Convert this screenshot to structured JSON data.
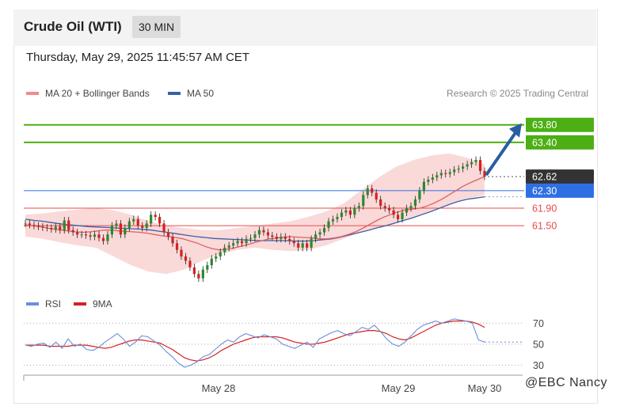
{
  "header": {
    "title": "Crude Oil (WTI)",
    "timeframe": "30 MIN",
    "timestamp": "Thursday, May 29, 2025 11:45:57 AM CET"
  },
  "legend": {
    "ma20": "MA 20 + Bollinger Bands",
    "ma50": "MA 50",
    "research": "Research © 2025 Trading Central"
  },
  "rsi_legend": {
    "rsi": "RSI",
    "ma9": "9MA"
  },
  "watermark": "@EBC Nancy",
  "colors": {
    "resistance": "#4caf14",
    "pivot": "#2f6fe4",
    "support": "#e84a4a",
    "price_label": "#333333",
    "arrow": "#2a5ea0",
    "ma20": "#e06060",
    "ma50": "#3a5fa8",
    "bollinger": "#f9d2d2",
    "candle_up": "#2a8a2a",
    "candle_down": "#d62020",
    "rsi": "#6a8fd8",
    "rsi_ma": "#d62020"
  },
  "chart_data": [
    {
      "type": "line",
      "title": "Crude Oil (WTI)",
      "x_ticks": [
        "May 28",
        "May 29",
        "May 30"
      ],
      "levels": [
        {
          "value": 63.8,
          "label": "63.80",
          "kind": "resistance"
        },
        {
          "value": 63.4,
          "label": "63.40",
          "kind": "resistance"
        },
        {
          "value": 62.62,
          "label": "62.62",
          "kind": "last"
        },
        {
          "value": 62.3,
          "label": "62.30",
          "kind": "pivot"
        },
        {
          "value": 61.9,
          "label": "61.90",
          "kind": "support"
        },
        {
          "value": 61.5,
          "label": "61.50",
          "kind": "support"
        }
      ],
      "ylim": [
        60.15,
        64.3
      ],
      "price_close": [
        61.55,
        61.52,
        61.5,
        61.48,
        61.46,
        61.45,
        61.42,
        61.48,
        61.4,
        61.62,
        61.4,
        61.35,
        61.3,
        61.3,
        61.28,
        61.25,
        61.3,
        61.22,
        61.15,
        61.3,
        61.5,
        61.55,
        61.3,
        61.45,
        61.6,
        61.65,
        61.5,
        61.45,
        61.55,
        61.75,
        61.7,
        61.55,
        61.35,
        61.25,
        61.1,
        60.95,
        60.8,
        60.7,
        60.55,
        60.4,
        60.3,
        60.5,
        60.6,
        60.75,
        60.8,
        60.9,
        61.0,
        61.05,
        61.1,
        61.15,
        61.1,
        61.2,
        61.22,
        61.3,
        61.4,
        61.35,
        61.28,
        61.25,
        61.2,
        61.25,
        61.2,
        61.15,
        61.1,
        61.0,
        61.1,
        61.0,
        61.2,
        61.3,
        61.35,
        61.45,
        61.6,
        61.65,
        61.7,
        61.8,
        61.85,
        61.75,
        61.9,
        61.95,
        62.2,
        62.35,
        62.25,
        62.1,
        61.95,
        61.9,
        61.85,
        61.75,
        61.65,
        61.8,
        61.9,
        61.95,
        62.1,
        62.3,
        62.5,
        62.55,
        62.6,
        62.65,
        62.7,
        62.68,
        62.72,
        62.78,
        62.8,
        62.85,
        62.9,
        62.95,
        63.0,
        62.75,
        62.62
      ],
      "ma20": [
        61.52,
        61.5,
        61.48,
        61.45,
        61.42,
        61.4,
        61.38,
        61.36,
        61.35,
        61.36,
        61.38,
        61.4,
        61.4,
        61.38,
        61.37,
        61.36,
        61.35,
        61.33,
        61.3,
        61.27,
        61.25,
        61.23,
        61.2,
        61.15,
        61.1,
        61.03,
        60.98,
        60.95,
        60.96,
        60.99,
        61.03,
        61.07,
        61.12,
        61.16,
        61.2,
        61.22,
        61.24,
        61.25,
        61.24,
        61.23,
        61.22,
        61.2,
        61.2,
        61.22,
        61.25,
        61.3,
        61.36,
        61.44,
        61.53,
        61.62,
        61.7,
        61.76,
        61.82,
        61.86,
        61.88,
        61.9,
        61.95,
        62.02,
        62.1,
        62.2,
        62.3,
        62.4,
        62.48,
        62.55,
        62.62
      ],
      "ma50": [
        61.65,
        61.62,
        61.6,
        61.57,
        61.54,
        61.52,
        61.5,
        61.48,
        61.47,
        61.46,
        61.45,
        61.44,
        61.43,
        61.42,
        61.4,
        61.37,
        61.34,
        61.31,
        61.28,
        61.25,
        61.23,
        61.21,
        61.2,
        61.19,
        61.18,
        61.17,
        61.16,
        61.16,
        61.16,
        61.16,
        61.15,
        61.15,
        61.16,
        61.18,
        61.2,
        61.24,
        61.29,
        61.34,
        61.39,
        61.45,
        61.5,
        61.56,
        61.62,
        61.68,
        61.75,
        61.82,
        61.9,
        61.98,
        62.05,
        62.1,
        62.13,
        62.16
      ],
      "bollinger_upper": [
        61.75,
        61.78,
        61.83,
        61.87,
        61.9,
        61.85,
        61.75,
        61.6,
        61.5,
        61.45,
        61.4,
        61.4,
        61.45,
        61.5,
        61.55,
        61.6,
        61.7,
        61.82,
        62.0,
        62.3,
        62.6,
        62.85,
        63.0,
        63.1,
        63.15,
        63.05,
        62.9
      ],
      "bollinger_lower": [
        61.25,
        61.2,
        61.12,
        61.05,
        61.0,
        60.8,
        60.6,
        60.45,
        60.4,
        60.5,
        60.7,
        60.85,
        60.95,
        61.0,
        60.95,
        60.92,
        60.95,
        61.05,
        61.2,
        61.35,
        61.45,
        61.55,
        61.7,
        61.85,
        62.0,
        62.1,
        62.2
      ]
    },
    {
      "type": "line",
      "title": "RSI",
      "series": [
        {
          "name": "RSI",
          "values": [
            49,
            48,
            50,
            51,
            47,
            52,
            46,
            55,
            48,
            50,
            45,
            44,
            47,
            52,
            56,
            60,
            55,
            48,
            52,
            58,
            57,
            53,
            49,
            43,
            38,
            32,
            28,
            30,
            33,
            38,
            40,
            45,
            50,
            54,
            52,
            57,
            60,
            58,
            56,
            59,
            57,
            55,
            50,
            48,
            46,
            49,
            52,
            47,
            55,
            58,
            61,
            63,
            60,
            58,
            62,
            66,
            64,
            68,
            62,
            55,
            50,
            48,
            52,
            58,
            64,
            68,
            70,
            72,
            70,
            72,
            74,
            73,
            72,
            70,
            54,
            52
          ]
        },
        {
          "name": "9MA",
          "values": [
            49,
            49,
            49,
            49,
            48,
            48,
            48,
            48,
            49,
            49,
            49,
            48,
            47,
            46,
            47,
            49,
            51,
            53,
            54,
            54,
            53,
            52,
            51,
            48,
            45,
            41,
            37,
            35,
            34,
            35,
            37,
            40,
            44,
            47,
            50,
            52,
            54,
            56,
            57,
            57,
            57,
            57,
            56,
            54,
            52,
            51,
            50,
            50,
            51,
            52,
            54,
            56,
            58,
            60,
            61,
            62,
            63,
            63,
            62,
            60,
            57,
            55,
            54,
            56,
            59,
            62,
            65,
            68,
            70,
            71,
            72,
            72,
            72,
            71,
            69,
            66
          ]
        }
      ],
      "y_ticks": [
        "70",
        "50",
        "30"
      ],
      "ylim": [
        25,
        80
      ]
    }
  ]
}
